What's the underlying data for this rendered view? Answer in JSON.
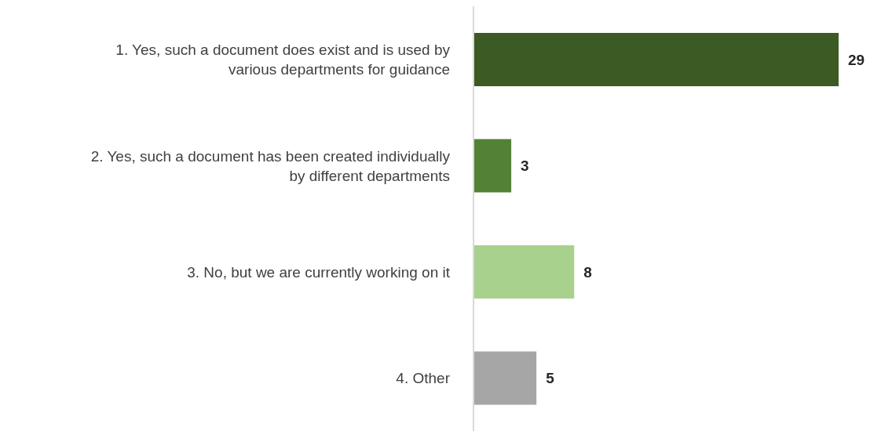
{
  "chart_data": {
    "type": "bar",
    "orientation": "horizontal",
    "categories": [
      "1. Yes, such a document does exist and is used by various departments for guidance",
      "2. Yes, such a document has been created individually by different departments",
      "3. No, but we are currently working on it",
      "4. Other"
    ],
    "values": [
      29,
      3,
      8,
      5
    ],
    "colors": [
      "#3b5a24",
      "#538135",
      "#a9d18e",
      "#a6a6a6"
    ],
    "data_labels": true,
    "grid": false,
    "legend": false
  }
}
